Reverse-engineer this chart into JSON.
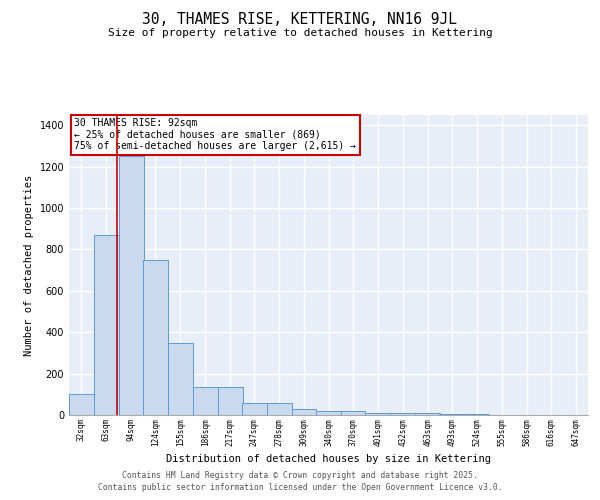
{
  "title": "30, THAMES RISE, KETTERING, NN16 9JL",
  "subtitle": "Size of property relative to detached houses in Kettering",
  "xlabel": "Distribution of detached houses by size in Kettering",
  "ylabel": "Number of detached properties",
  "bar_color": "#c9d9f0",
  "bar_edge_color": "#5b9bd5",
  "background_color": "#e8eef8",
  "grid_color": "#ffffff",
  "bins": [
    32,
    63,
    94,
    124,
    155,
    186,
    217,
    247,
    278,
    309,
    340,
    370,
    401,
    432,
    463,
    493,
    524,
    555,
    586,
    616,
    647
  ],
  "values": [
    100,
    869,
    1250,
    750,
    350,
    135,
    135,
    60,
    60,
    28,
    20,
    20,
    10,
    8,
    8,
    5,
    5,
    2,
    2,
    1,
    1
  ],
  "property_size": 92,
  "annotation_line1": "30 THAMES RISE: 92sqm",
  "annotation_line2": "← 25% of detached houses are smaller (869)",
  "annotation_line3": "75% of semi-detached houses are larger (2,615) →",
  "red_line_color": "#cc0000",
  "annotation_box_color": "#ffffff",
  "annotation_box_edge": "#cc0000",
  "ylim": [
    0,
    1450
  ],
  "yticks": [
    0,
    200,
    400,
    600,
    800,
    1000,
    1200,
    1400
  ],
  "footnote1": "Contains HM Land Registry data © Crown copyright and database right 2025.",
  "footnote2": "Contains public sector information licensed under the Open Government Licence v3.0."
}
